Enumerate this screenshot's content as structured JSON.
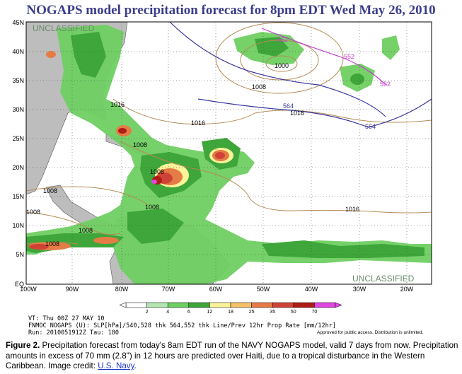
{
  "title": "NOGAPS model precipitation forecast for 8pm EDT Wed May 26, 2010",
  "classification_top": "UNCLASSIFIED",
  "classification_bottom": "UNCLASSIFIED",
  "latitude_labels": [
    "45N",
    "40N",
    "35N",
    "30N",
    "25N",
    "20N",
    "15N",
    "10N",
    "5N",
    "EQ"
  ],
  "longitude_labels": [
    "100W",
    "90W",
    "80W",
    "70W",
    "60W",
    "50W",
    "40W",
    "30W",
    "20W"
  ],
  "pressure_labels": [
    "1016",
    "1008",
    "1000",
    "1008",
    "1016",
    "1008",
    "1016",
    "1008",
    "1008",
    "1008",
    "1008",
    "1016",
    "1008"
  ],
  "thickness_labels": [
    "552",
    "552",
    "552",
    "564",
    "564"
  ],
  "legend": {
    "values": [
      "2",
      "4",
      "6",
      "12",
      "18",
      "25",
      "35",
      "50",
      "70"
    ],
    "colors": [
      "#ffffff",
      "#b3e6b3",
      "#6fcf62",
      "#3ea63a",
      "#fbf39a",
      "#f6c169",
      "#e57c45",
      "#d04236",
      "#b01b15",
      "#e047e0"
    ]
  },
  "meta_lines": [
    "VT: Thu 00Z 27 MAY 10",
    "FNMOC NOGAPS (U): SLP[hPa]/540,528 thk 564,552 thk Line/Prev 12hr Prop Rate [mm/12hr]",
    "Run: 2010051912Z Tau: 180"
  ],
  "approval_text": "Approved for public access. Distribution is unlimited.",
  "caption": {
    "label": "Figure 2.",
    "text": " Precipitation forecast from today's 8am EDT run of the NAVY NOGAPS model, valid 7 days from now. Precipitation amounts in excess of 70 mm (2.8\") in 12 hours are predicted over Haiti, due to a tropical disturbance in the Western Caribbean. Image credit: ",
    "link_text": "U.S. Navy",
    "end": "."
  },
  "colors": {
    "title": "#3a3d8a",
    "ocean": "#ffffff",
    "land": "#bdbdbd",
    "isobar": "#b58a55",
    "thickness": "#3d3aa0",
    "thickness_552": "#c23fd0",
    "link": "#1a35c8"
  }
}
